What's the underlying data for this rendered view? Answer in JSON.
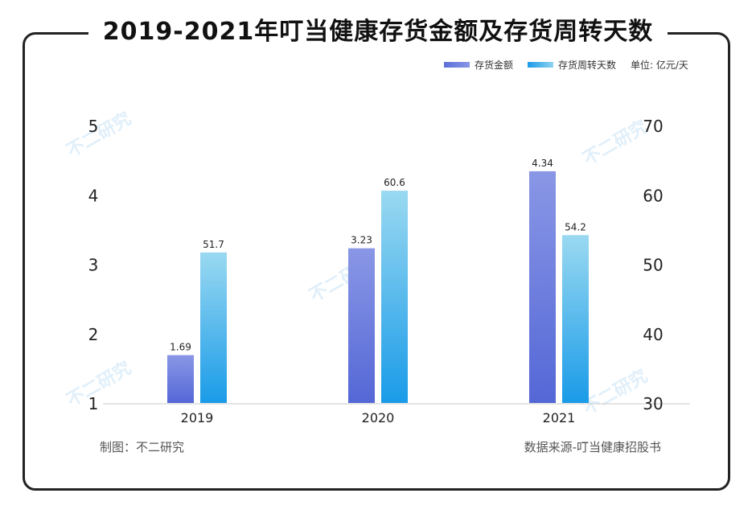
{
  "title": "2019-2021年叮当健康存货金额及存货周转天数",
  "legend": {
    "series1": "存货金额",
    "series2": "存货周转天数",
    "unit": "单位: 亿元/天"
  },
  "footer": {
    "left": "制图：不二研究",
    "right": "数据来源-叮当健康招股书"
  },
  "watermark": "不二研究",
  "colors": {
    "series1_top": "#8a97e6",
    "series1_bottom": "#5467d6",
    "series2_top": "#9ad9f1",
    "series2_bottom": "#1a9be8"
  },
  "chart_data": {
    "type": "bar",
    "title": "2019-2021年叮当健康存货金额及存货周转天数",
    "categories": [
      "2019",
      "2020",
      "2021"
    ],
    "series": [
      {
        "name": "存货金额",
        "axis": "left",
        "values": [
          1.69,
          3.23,
          4.34
        ],
        "labels": [
          "1.69",
          "3.23",
          "4.34"
        ]
      },
      {
        "name": "存货周转天数",
        "axis": "right",
        "values": [
          51.7,
          60.6,
          54.2
        ],
        "labels": [
          "51.7",
          "60.6",
          "54.2"
        ]
      }
    ],
    "y_left": {
      "min": 1,
      "max": 5,
      "ticks": [
        "1",
        "2",
        "3",
        "4",
        "5"
      ]
    },
    "y_right": {
      "min": 30,
      "max": 70,
      "ticks": [
        "30",
        "40",
        "50",
        "60",
        "70"
      ]
    },
    "grid": false,
    "legend_position": "top-right"
  }
}
